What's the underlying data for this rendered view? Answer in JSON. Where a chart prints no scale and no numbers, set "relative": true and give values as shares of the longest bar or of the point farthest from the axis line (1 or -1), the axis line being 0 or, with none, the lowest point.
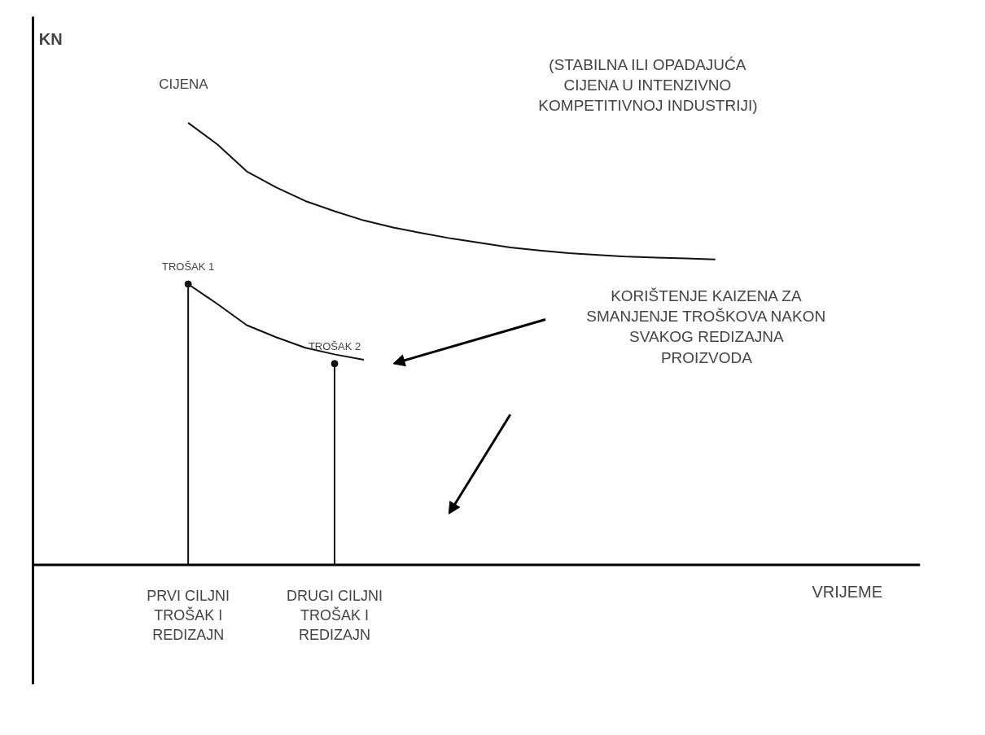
{
  "chart_data": {
    "type": "line",
    "relative": true,
    "categories": [
      "PRVI CILJNI TROŠAK I REDIZAJN",
      null,
      null,
      null,
      null,
      "DRUGI CILJNI TROŠAK I REDIZAJN",
      null,
      null,
      null,
      null,
      null,
      null,
      null,
      null,
      null,
      null,
      null,
      null,
      null
    ],
    "series": [
      {
        "name": "CIJENA",
        "color": "#111111",
        "values": [
          1.0,
          0.951,
          0.89,
          0.854,
          0.823,
          0.8,
          0.779,
          0.763,
          0.75,
          0.738,
          0.728,
          0.718,
          0.711,
          0.705,
          0.701,
          0.697,
          0.695,
          0.693,
          0.691
        ]
      },
      {
        "color": "#111111",
        "values": [
          0.635,
          0.59,
          0.542,
          0.515,
          0.491,
          0.476,
          0.464,
          null,
          null,
          null,
          null,
          null,
          null,
          null,
          null,
          null,
          null,
          null,
          null
        ]
      },
      {
        "type": "lollipop",
        "color": "#111111",
        "values": [
          0.635,
          null,
          null,
          null,
          null,
          0.455,
          null,
          null,
          null,
          null,
          null,
          null,
          null,
          null,
          null,
          null,
          null,
          null,
          null
        ]
      }
    ],
    "annotations": [
      "KN",
      "(STABILNA ILI OPADAJUĆA CIJENA U INTENZIVNO KOMPETITIVNOJ INDUSTRIJI)",
      {
        "text": "TROŠAK 1",
        "x": "PRVI CILJNI TROŠAK I REDIZAJN",
        "y": 0.635
      },
      {
        "text": "TROŠAK 2",
        "x": "DRUGI CILJNI TROŠAK I REDIZAJN",
        "y": 0.455
      },
      "KORIŠTENJE KAIZENA ZA SMANJENJE TROŠKOVA NAKON SVAKOG REDIZAJNA PROIZVODA",
      "VRIJEME"
    ],
    "grid": false,
    "legend": false,
    "line_style": "solid"
  }
}
